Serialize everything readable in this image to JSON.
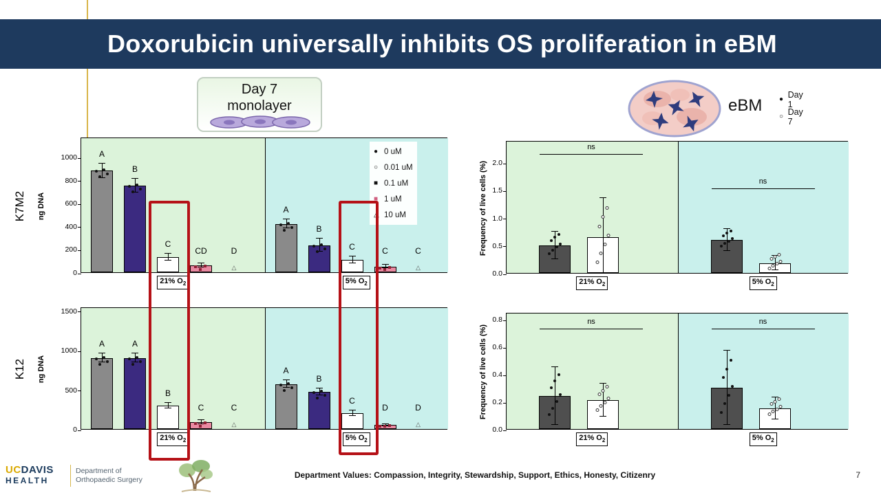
{
  "slide": {
    "title": "Doxorubicin universally inhibits OS proliferation in eBM",
    "page_number": "7"
  },
  "annotations": {
    "monolayer_label_line1": "Day 7",
    "monolayer_label_line2": "monolayer",
    "ebm_label": "eBM",
    "ebm_legend": [
      {
        "marker": "●",
        "label": "Day 1"
      },
      {
        "marker": "○",
        "label": "Day 7"
      }
    ]
  },
  "footer": {
    "logo_uc": "UC",
    "logo_davis": "DAVIS",
    "logo_health": "HEALTH",
    "dept_line1": "Department of",
    "dept_line2": "Orthopaedic Surgery",
    "values_text": "Department Values: Compassion, Integrity, Stewardship, Support, Ethics, Honesty, Citizenry"
  },
  "colors": {
    "banner": "#1e3a5e",
    "panel_green": "#dcf3da",
    "panel_cyan": "#c9f0ec",
    "highlight_red": "#b51117",
    "gold_accent": "#d8b54a"
  },
  "chart_data": [
    {
      "id": "K7M2-monolayer",
      "type": "bar",
      "row_label": "K7M2",
      "ylabel": "ng DNA",
      "ylim": [
        0,
        1175
      ],
      "yticks": [
        "1000",
        "800",
        "600",
        "400",
        "200",
        "0"
      ],
      "dose_colors": [
        "#8a8a8a",
        "#3b2a80",
        "#ffffff",
        "#e989a1",
        "#ffffff"
      ],
      "legend": [
        {
          "marker": "●",
          "color": "#111111",
          "label": "0 uM"
        },
        {
          "marker": "○",
          "color": "#111111",
          "label": "0.01 uM"
        },
        {
          "marker": "■",
          "color": "#111111",
          "label": "0.1 uM"
        },
        {
          "marker": "■",
          "color": "#d06080",
          "label": "1 uM"
        },
        {
          "marker": "△",
          "color": "#111111",
          "label": "10 uM"
        }
      ],
      "groups": [
        {
          "condition": "21% O2",
          "bg": "#dcf3da",
          "bars": [
            {
              "label": "0 uM",
              "value": 880,
              "err": 60,
              "letter": "A"
            },
            {
              "label": "0.01 uM",
              "value": 750,
              "err": 60,
              "letter": "B"
            },
            {
              "label": "0.1 uM",
              "value": 130,
              "err": 30,
              "letter": "C"
            },
            {
              "label": "1 uM",
              "value": 60,
              "err": 20,
              "letter": "CD"
            },
            {
              "label": "10 uM",
              "value": 3,
              "err": 0,
              "letter": "D"
            }
          ]
        },
        {
          "condition": "5% O2",
          "bg": "#c9f0ec",
          "bars": [
            {
              "label": "0 uM",
              "value": 420,
              "err": 40,
              "letter": "A"
            },
            {
              "label": "0.01 uM",
              "value": 235,
              "err": 55,
              "letter": "B"
            },
            {
              "label": "0.1 uM",
              "value": 110,
              "err": 30,
              "letter": "C"
            },
            {
              "label": "1 uM",
              "value": 50,
              "err": 15,
              "letter": "C"
            },
            {
              "label": "10 uM",
              "value": 3,
              "err": 0,
              "letter": "C"
            }
          ]
        }
      ]
    },
    {
      "id": "K12-monolayer",
      "type": "bar",
      "row_label": "K12",
      "ylabel": "ng DNA",
      "ylim": [
        0,
        1550
      ],
      "yticks": [
        "1500",
        "1000",
        "500",
        "0"
      ],
      "dose_colors": [
        "#8a8a8a",
        "#3b2a80",
        "#ffffff",
        "#e989a1",
        "#ffffff"
      ],
      "groups": [
        {
          "condition": "21% O2",
          "bg": "#dcf3da",
          "bars": [
            {
              "label": "0 uM",
              "value": 900,
              "err": 55,
              "letter": "A"
            },
            {
              "label": "0.01 uM",
              "value": 900,
              "err": 55,
              "letter": "A"
            },
            {
              "label": "0.1 uM",
              "value": 300,
              "err": 35,
              "letter": "B"
            },
            {
              "label": "1 uM",
              "value": 90,
              "err": 25,
              "letter": "C"
            },
            {
              "label": "10 uM",
              "value": 3,
              "err": 0,
              "letter": "C"
            }
          ]
        },
        {
          "condition": "5% O2",
          "bg": "#c9f0ec",
          "bars": [
            {
              "label": "0 uM",
              "value": 570,
              "err": 45,
              "letter": "A"
            },
            {
              "label": "0.01 uM",
              "value": 470,
              "err": 45,
              "letter": "B"
            },
            {
              "label": "0.1 uM",
              "value": 200,
              "err": 35,
              "letter": "C"
            },
            {
              "label": "1 uM",
              "value": 50,
              "err": 15,
              "letter": "D"
            },
            {
              "label": "10 uM",
              "value": 3,
              "err": 0,
              "letter": "D"
            }
          ]
        }
      ]
    },
    {
      "id": "K7M2-eBM",
      "type": "bar",
      "ylabel": "Frequency of live cells (%)",
      "ylim": [
        0,
        2.4
      ],
      "yticks": [
        "2.0",
        "1.5",
        "1.0",
        "0.5",
        "0.0"
      ],
      "day_colors": [
        "#4f4f4f",
        "#ffffff"
      ],
      "groups": [
        {
          "condition": "21% O2",
          "bg": "#dcf3da",
          "sig": "ns",
          "sig_y": 2.18,
          "bars": [
            {
              "label": "Day 1",
              "value": 0.5,
              "err": 0.25
            },
            {
              "label": "Day 7",
              "value": 0.65,
              "err": 0.7
            }
          ]
        },
        {
          "condition": "5% O2",
          "bg": "#c9f0ec",
          "sig": "ns",
          "sig_y": 1.55,
          "bars": [
            {
              "label": "Day 1",
              "value": 0.6,
              "err": 0.2
            },
            {
              "label": "Day 7",
              "value": 0.18,
              "err": 0.13
            }
          ]
        }
      ]
    },
    {
      "id": "K12-eBM",
      "type": "bar",
      "ylabel": "Frequency of live cells (%)",
      "ylim": [
        0,
        0.85
      ],
      "yticks": [
        "0.8",
        "0.6",
        "0.4",
        "0.2",
        "0.0"
      ],
      "day_colors": [
        "#4f4f4f",
        "#ffffff"
      ],
      "groups": [
        {
          "condition": "21% O2",
          "bg": "#dcf3da",
          "sig": "ns",
          "sig_y": 0.74,
          "bars": [
            {
              "label": "Day 1",
              "value": 0.24,
              "err": 0.21
            },
            {
              "label": "Day 7",
              "value": 0.21,
              "err": 0.12
            }
          ]
        },
        {
          "condition": "5% O2",
          "bg": "#c9f0ec",
          "sig": "ns",
          "sig_y": 0.74,
          "bars": [
            {
              "label": "Day 1",
              "value": 0.3,
              "err": 0.27
            },
            {
              "label": "Day 7",
              "value": 0.15,
              "err": 0.08
            }
          ]
        }
      ]
    }
  ]
}
